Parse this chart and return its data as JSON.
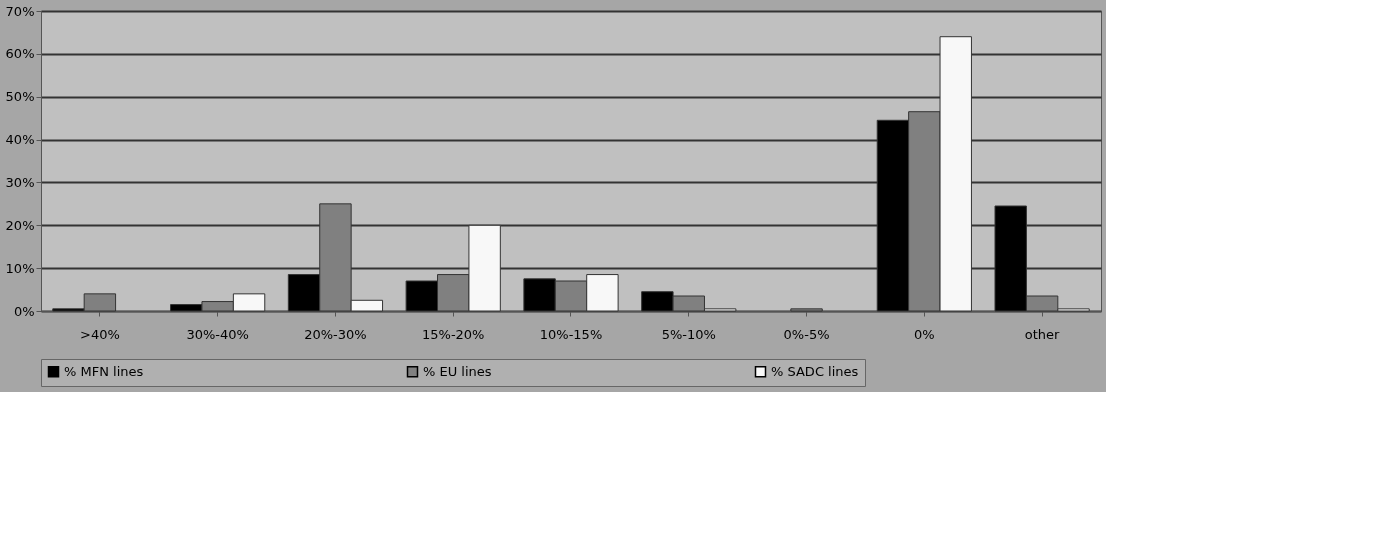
{
  "chart_data": {
    "type": "bar",
    "categories": [
      ">40%",
      "30%-40%",
      "20%-30%",
      "15%-20%",
      "10%-15%",
      "5%-10%",
      "0%-5%",
      "0%",
      "other"
    ],
    "series": [
      {
        "name": "% MFN lines",
        "color": "#000000",
        "values": [
          0.5,
          1.5,
          8.5,
          7,
          7.5,
          4.5,
          0,
          44.5,
          24.5
        ]
      },
      {
        "name": "% EU lines",
        "color": "#808080",
        "values": [
          4,
          2.2,
          25,
          8.5,
          7,
          3.5,
          0.5,
          46.5,
          3.5
        ]
      },
      {
        "name": "% SADC lines",
        "color": "#f8f8f8",
        "values": [
          0,
          4,
          2.5,
          20,
          8.5,
          0.5,
          0,
          64,
          0.5
        ]
      }
    ],
    "ylim": [
      0,
      70
    ],
    "yticks": [
      {
        "value": 0,
        "label": "0%"
      },
      {
        "value": 10,
        "label": "10%"
      },
      {
        "value": 20,
        "label": "20%"
      },
      {
        "value": 30,
        "label": "30%"
      },
      {
        "value": 40,
        "label": "40%"
      },
      {
        "value": 50,
        "label": "50%"
      },
      {
        "value": 60,
        "label": "60%"
      },
      {
        "value": 70,
        "label": "70%"
      }
    ],
    "grid": "y",
    "legend": "bottom"
  }
}
